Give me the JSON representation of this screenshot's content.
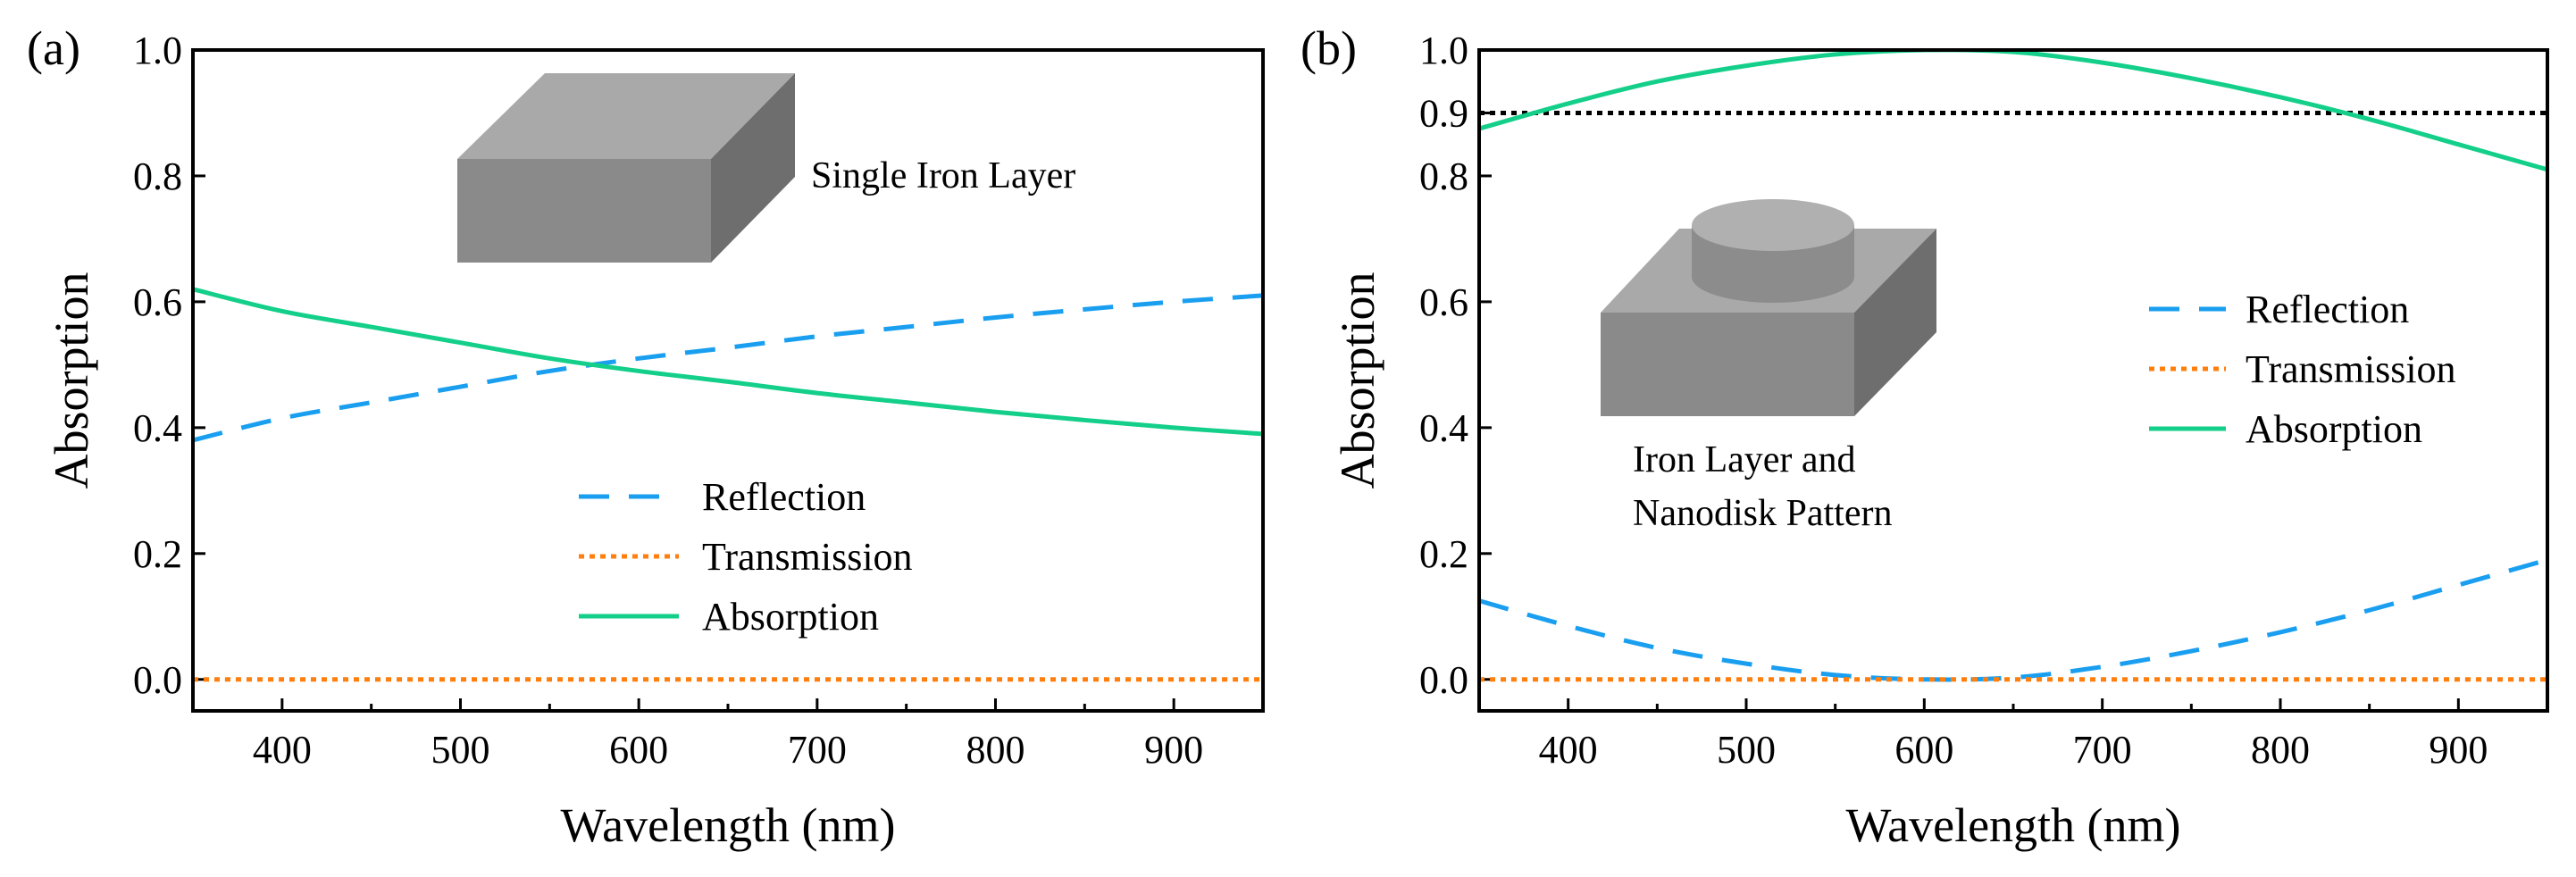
{
  "chart_data": [
    {
      "type": "line",
      "panel_label": "(a)",
      "xlabel": "Wavelength (nm)",
      "ylabel": "Absorption",
      "xlim": [
        350,
        950
      ],
      "ylim": [
        -0.05,
        1.0
      ],
      "xticks": [
        "400",
        "500",
        "600",
        "700",
        "800",
        "900"
      ],
      "xtick_values": [
        400,
        500,
        600,
        700,
        800,
        900
      ],
      "yticks": [
        "0.0",
        "0.2",
        "0.4",
        "0.6",
        "0.8",
        "1.0"
      ],
      "ytick_values": [
        0,
        0.2,
        0.4,
        0.6,
        0.8,
        1.0
      ],
      "x": [
        350,
        400,
        450,
        500,
        550,
        600,
        650,
        700,
        750,
        800,
        850,
        900,
        950
      ],
      "series": [
        {
          "name": "Reflection",
          "color": "#1a9ff0",
          "style": "dashed",
          "values": [
            0.38,
            0.415,
            0.44,
            0.465,
            0.49,
            0.51,
            0.527,
            0.545,
            0.56,
            0.575,
            0.588,
            0.6,
            0.61
          ]
        },
        {
          "name": "Transmission",
          "color": "#ff7f0e",
          "style": "dotted",
          "values": [
            0,
            0,
            0,
            0,
            0,
            0,
            0,
            0,
            0,
            0,
            0,
            0,
            0
          ]
        },
        {
          "name": "Absorption",
          "color": "#13cf8a",
          "style": "solid",
          "values": [
            0.62,
            0.585,
            0.56,
            0.535,
            0.51,
            0.49,
            0.473,
            0.455,
            0.44,
            0.425,
            0.412,
            0.4,
            0.39
          ]
        }
      ],
      "legend_position": "lower-center",
      "inset_caption_lines": [
        "Single Iron Layer"
      ],
      "inset_shape": "slab"
    },
    {
      "type": "line",
      "panel_label": "(b)",
      "xlabel": "Wavelength (nm)",
      "ylabel": "Absorption",
      "xlim": [
        350,
        950
      ],
      "ylim": [
        -0.05,
        1.0
      ],
      "xticks": [
        "400",
        "500",
        "600",
        "700",
        "800",
        "900"
      ],
      "xtick_values": [
        400,
        500,
        600,
        700,
        800,
        900
      ],
      "yticks": [
        "0.0",
        "0.2",
        "0.4",
        "0.6",
        "0.8",
        "0.9",
        "1.0"
      ],
      "ytick_values": [
        0,
        0.2,
        0.4,
        0.6,
        0.8,
        0.9,
        1.0
      ],
      "reference_line": {
        "y": 0.9,
        "style": "dotted",
        "color": "#000000"
      },
      "x": [
        350,
        400,
        450,
        500,
        550,
        600,
        650,
        700,
        750,
        800,
        850,
        900,
        950
      ],
      "series": [
        {
          "name": "Reflection",
          "color": "#1a9ff0",
          "style": "dashed",
          "values": [
            0.125,
            0.085,
            0.05,
            0.025,
            0.007,
            0.0,
            0.003,
            0.02,
            0.045,
            0.075,
            0.11,
            0.15,
            0.19
          ]
        },
        {
          "name": "Transmission",
          "color": "#ff7f0e",
          "style": "dotted",
          "values": [
            0,
            0,
            0,
            0,
            0,
            0,
            0,
            0,
            0,
            0,
            0,
            0,
            0
          ]
        },
        {
          "name": "Absorption",
          "color": "#13cf8a",
          "style": "solid",
          "values": [
            0.875,
            0.915,
            0.95,
            0.975,
            0.993,
            1.0,
            0.997,
            0.98,
            0.955,
            0.925,
            0.89,
            0.85,
            0.81
          ]
        }
      ],
      "legend_position": "right-center",
      "inset_caption_lines": [
        "Iron Layer and",
        "Nanodisk Pattern"
      ],
      "inset_shape": "slab-with-disk"
    }
  ]
}
